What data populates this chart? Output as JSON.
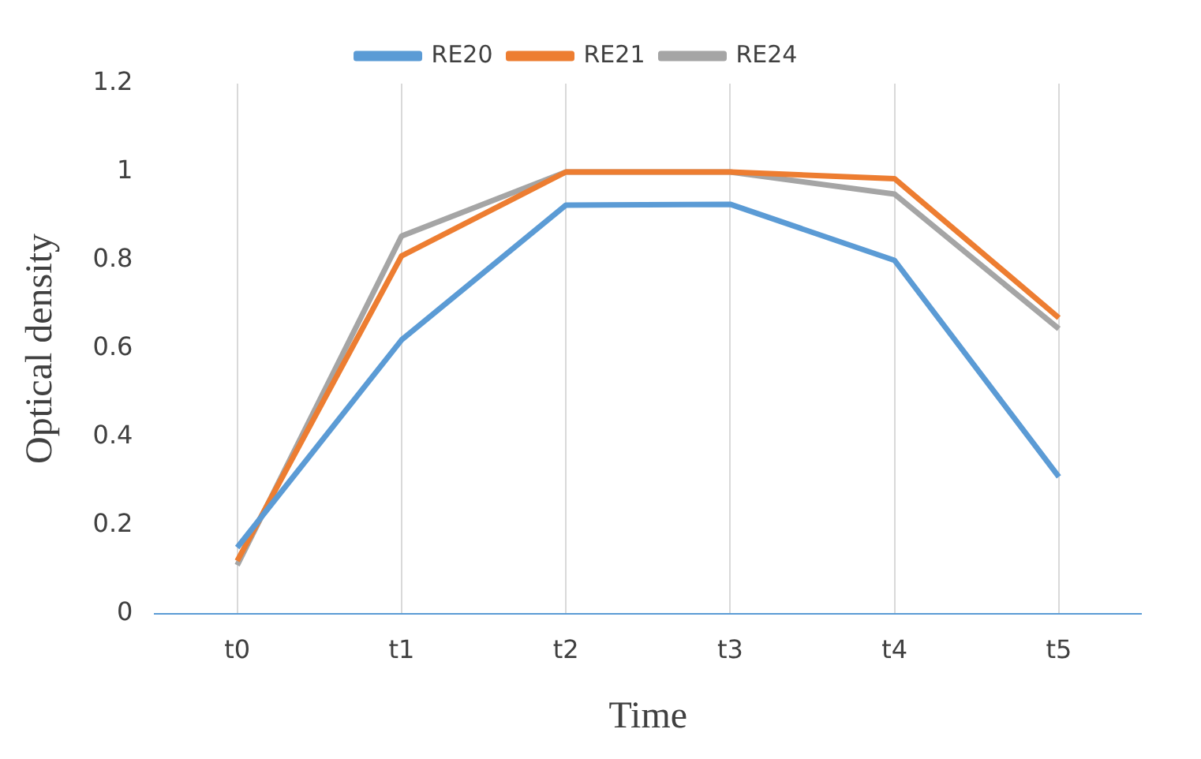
{
  "chart_data": {
    "type": "line",
    "xlabel": "Time",
    "ylabel": "Optical density",
    "categories": [
      "t0",
      "t1",
      "t2",
      "t3",
      "t4",
      "t5"
    ],
    "series": [
      {
        "name": "RE20",
        "color": "#5b9bd5",
        "values": [
          0.15,
          0.62,
          0.925,
          0.927,
          0.8,
          0.31
        ]
      },
      {
        "name": "RE21",
        "color": "#ed7d31",
        "values": [
          0.12,
          0.81,
          1.0,
          1.0,
          0.985,
          0.67
        ]
      },
      {
        "name": "RE24",
        "color": "#a5a5a5",
        "values": [
          0.11,
          0.855,
          1.0,
          1.0,
          0.95,
          0.645
        ]
      }
    ],
    "ylim": [
      0,
      1.2
    ],
    "yticks": [
      0,
      0.2,
      0.4,
      0.6,
      0.8,
      1,
      1.2
    ],
    "grid": "x",
    "legend": "top",
    "marker": "none",
    "line_style": "solid"
  }
}
